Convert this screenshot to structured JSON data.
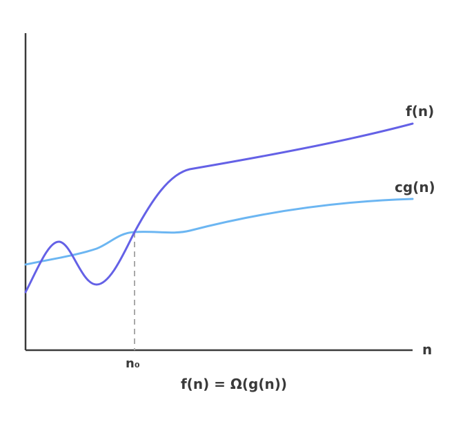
{
  "diagram": {
    "type": "asymptotic-lower-bound",
    "caption": "f(n) = Ω(g(n))",
    "x_axis_label": "n",
    "threshold_label": "n₀",
    "curves": [
      {
        "id": "f",
        "label": "f(n)",
        "color": "#6461e6"
      },
      {
        "id": "cg",
        "label": "cg(n)",
        "color": "#6cb6f2"
      }
    ],
    "colors": {
      "axis": "#3a3a3a",
      "guide": "#a8a8a8",
      "text": "#3a3a3a"
    }
  }
}
